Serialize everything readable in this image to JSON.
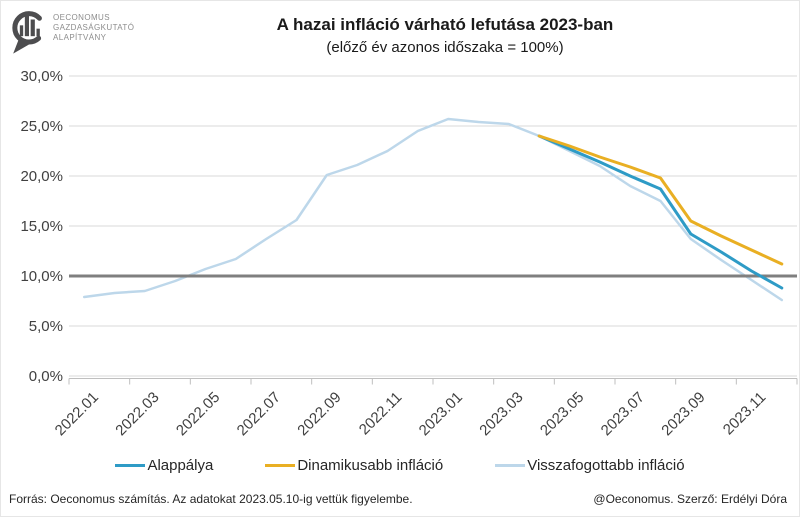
{
  "logo": {
    "line1": "OECONOMUS",
    "line2": "GAZDASÁGKUTATÓ",
    "line3": "ALAPÍTVÁNY"
  },
  "title": "A hazai infláció várható lefutása 2023-ban",
  "subtitle": "(előző év azonos időszaka = 100%)",
  "footer": {
    "left": "Forrás: Oeconomus számítás. Az adatokat 2023.05.10-ig vettük figyelembe.",
    "right": "@Oeconomus. Szerző: Erdélyi Dóra"
  },
  "chart_data": {
    "type": "line",
    "title": "A hazai infláció várható lefutása 2023-ban",
    "subtitle": "(előző év azonos időszaka = 100%)",
    "x": [
      "2022.01",
      "2022.02",
      "2022.03",
      "2022.04",
      "2022.05",
      "2022.06",
      "2022.07",
      "2022.08",
      "2022.09",
      "2022.10",
      "2022.11",
      "2022.12",
      "2023.01",
      "2023.02",
      "2023.03",
      "2023.04",
      "2023.05",
      "2023.06",
      "2023.07",
      "2023.08",
      "2023.09",
      "2023.10",
      "2023.11",
      "2023.12"
    ],
    "x_label_interval": 2,
    "ylim": [
      0,
      30
    ],
    "y_ticks": [
      {
        "value": 0,
        "label": "0,0%"
      },
      {
        "value": 5,
        "label": "5,0%"
      },
      {
        "value": 10,
        "label": "10,0%"
      },
      {
        "value": 15,
        "label": "15,0%"
      },
      {
        "value": 20,
        "label": "20,0%"
      },
      {
        "value": 25,
        "label": "25,0%"
      },
      {
        "value": 30,
        "label": "30,0%"
      }
    ],
    "grid_on": true,
    "grid_color": "#d9d9d9",
    "axis_color": "#bfbfbf",
    "reference_line": {
      "value": 10,
      "color": "#7f7f7f",
      "width": 3
    },
    "legend_position": "bottom",
    "series": [
      {
        "name": "Alappálya",
        "color": "#2e9bc6",
        "width": 3,
        "values": [
          null,
          null,
          null,
          null,
          null,
          null,
          null,
          null,
          null,
          null,
          null,
          null,
          null,
          null,
          null,
          24.0,
          22.7,
          21.4,
          20.0,
          18.7,
          14.2,
          12.4,
          10.5,
          8.8
        ]
      },
      {
        "name": "Dinamikusabb infláció",
        "color": "#e9af23",
        "width": 3,
        "values": [
          null,
          null,
          null,
          null,
          null,
          null,
          null,
          null,
          null,
          null,
          null,
          null,
          null,
          null,
          null,
          24.0,
          23.0,
          21.9,
          20.9,
          19.8,
          15.5,
          14.0,
          12.6,
          11.2
        ]
      },
      {
        "name": "Visszafogottabb infláció",
        "color": "#bdd7ea",
        "width": 2.5,
        "values": [
          7.9,
          8.3,
          8.5,
          9.5,
          10.7,
          11.7,
          13.7,
          15.6,
          20.1,
          21.1,
          22.5,
          24.5,
          25.7,
          25.4,
          25.2,
          24.0,
          22.5,
          21.0,
          19.0,
          17.5,
          13.7,
          11.6,
          9.6,
          7.6
        ]
      }
    ]
  }
}
